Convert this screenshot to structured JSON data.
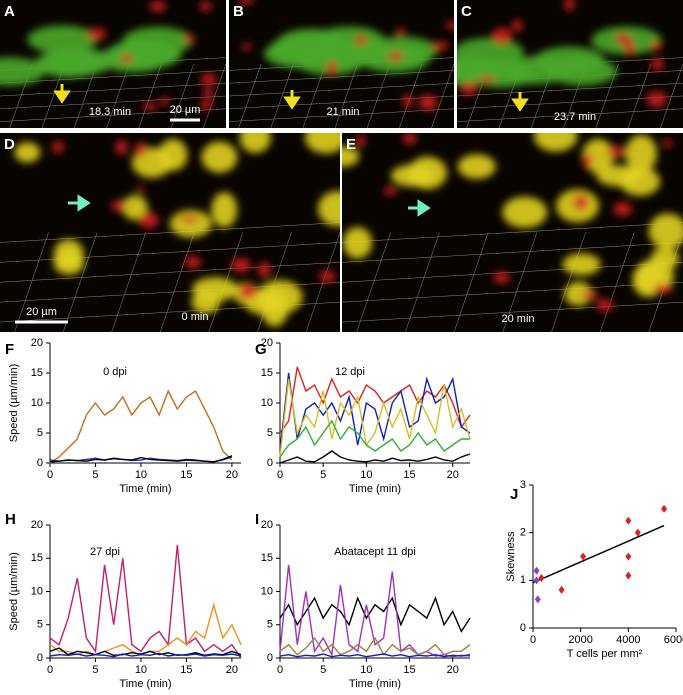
{
  "panels": [
    {
      "label": "A",
      "time": "18.3 min",
      "scale": "20 µm"
    },
    {
      "label": "B",
      "time": "21 min"
    },
    {
      "label": "C",
      "time": "23.7 min"
    },
    {
      "label": "D",
      "time": "0 min",
      "scale": "20 µm"
    },
    {
      "label": "E",
      "time": "20 min"
    }
  ],
  "chart_data": [
    {
      "type": "line",
      "label": "F",
      "title": "0 dpi",
      "ylabel": "Speed (µm/min)",
      "xlabel": "Time (min)",
      "x": [
        0,
        1,
        2,
        3,
        4,
        5,
        6,
        7,
        8,
        9,
        10,
        11,
        12,
        13,
        14,
        15,
        16,
        17,
        18,
        19,
        20
      ],
      "xlim": [
        0,
        21
      ],
      "xticks": [
        0,
        5,
        10,
        15,
        20
      ],
      "ylim": [
        0,
        20
      ],
      "yticks": [
        0,
        5,
        10,
        15,
        20
      ],
      "series": [
        {
          "color": "#c07020",
          "values": [
            0,
            1,
            2.5,
            4,
            8,
            10,
            8,
            9,
            11,
            8,
            10,
            11,
            8,
            12,
            9,
            11,
            12,
            9,
            6,
            2,
            0.5
          ]
        },
        {
          "color": "#2030c0",
          "values": [
            0.5,
            0.3,
            0.5,
            0.4,
            0.6,
            0.8,
            0.5,
            0.7,
            0.6,
            0.4,
            0.5,
            0.8,
            0.6,
            0.5,
            0.4,
            0.6,
            0.5,
            0.3,
            0.2,
            0.5,
            1
          ]
        },
        {
          "color": "#000000",
          "values": [
            0.2,
            0.3,
            0.5,
            0.4,
            0.3,
            0.6,
            0.5,
            0.8,
            0.6,
            0.5,
            0.9,
            0.6,
            0.5,
            0.4,
            0.3,
            0.5,
            0.4,
            0.3,
            0.2,
            0.6,
            1.2
          ]
        }
      ]
    },
    {
      "type": "line",
      "label": "G",
      "title": "12 dpi",
      "xlabel": "Time (min)",
      "x": [
        0,
        1,
        2,
        3,
        4,
        5,
        6,
        7,
        8,
        9,
        10,
        11,
        12,
        13,
        14,
        15,
        16,
        17,
        18,
        19,
        20,
        21,
        22
      ],
      "xlim": [
        0,
        22
      ],
      "xticks": [
        0,
        5,
        10,
        15,
        20
      ],
      "ylim": [
        0,
        20
      ],
      "yticks": [
        0,
        5,
        10,
        15,
        20
      ],
      "series": [
        {
          "color": "#e02020",
          "values": [
            5,
            7,
            16,
            12,
            13,
            10,
            14,
            11,
            12,
            10,
            13,
            12,
            10,
            11,
            12,
            13,
            10,
            12,
            11,
            13,
            10,
            6,
            8
          ]
        },
        {
          "color": "#1020c0",
          "values": [
            2,
            15,
            4,
            9,
            10,
            8,
            10,
            7,
            11,
            3,
            10,
            9,
            4,
            10,
            12,
            6,
            7,
            14,
            10,
            11,
            14,
            6,
            5
          ]
        },
        {
          "color": "#d4c020",
          "values": [
            1,
            14,
            5,
            8,
            6,
            12,
            4,
            10,
            8,
            11,
            3,
            5,
            10,
            6,
            9,
            4,
            11,
            8,
            5,
            13,
            6,
            9,
            4
          ]
        },
        {
          "color": "#30b030",
          "values": [
            1,
            3,
            4,
            6,
            3,
            5,
            7,
            4,
            6,
            5,
            3,
            2,
            3,
            4,
            2,
            3,
            5,
            3,
            4,
            2,
            3,
            4,
            4
          ]
        },
        {
          "color": "#000000",
          "values": [
            0,
            0.5,
            1,
            0.3,
            0.2,
            1,
            2,
            1,
            0.5,
            0.3,
            0.2,
            0.5,
            0.3,
            0.8,
            0.4,
            0.5,
            0.3,
            0.6,
            1,
            0.5,
            0.3,
            1,
            1.5
          ]
        }
      ]
    },
    {
      "type": "line",
      "label": "H",
      "title": "27 dpi",
      "ylabel": "Speed (µm/min)",
      "xlabel": "Time (min)",
      "x": [
        0,
        1,
        2,
        3,
        4,
        5,
        6,
        7,
        8,
        9,
        10,
        11,
        12,
        13,
        14,
        15,
        16,
        17,
        18,
        19,
        20,
        21
      ],
      "xlim": [
        0,
        21
      ],
      "xticks": [
        0,
        5,
        10,
        15,
        20
      ],
      "ylim": [
        0,
        20
      ],
      "yticks": [
        0,
        5,
        10,
        15,
        20
      ],
      "series": [
        {
          "color": "#c02070",
          "values": [
            3,
            2,
            6,
            12,
            3,
            1,
            14,
            5,
            15,
            2,
            1,
            3,
            4,
            2,
            17,
            2,
            3,
            1,
            2,
            1,
            2,
            0
          ]
        },
        {
          "color": "#f09020",
          "values": [
            2,
            1,
            1,
            0.5,
            1,
            0.5,
            1,
            1.5,
            2,
            1,
            0.5,
            1,
            1,
            2,
            3,
            2,
            4,
            3,
            8,
            3,
            5,
            2
          ]
        },
        {
          "color": "#000000",
          "values": [
            1,
            1.5,
            0.5,
            1,
            0.8,
            0.5,
            1,
            0.4,
            0.5,
            0.8,
            0.6,
            1,
            0.5,
            0.8,
            0.4,
            0.5,
            0.8,
            0.4,
            0.6,
            0.5,
            1,
            0.5
          ]
        },
        {
          "color": "#1020c0",
          "values": [
            0.3,
            0.5,
            0.4,
            0.6,
            0.3,
            0.5,
            0.4,
            0.2,
            0.6,
            0.3,
            0.5,
            0.4,
            0.7,
            0.3,
            0.5,
            0.4,
            0.6,
            0.3,
            0.5,
            0.4,
            0.6,
            0.3
          ]
        }
      ]
    },
    {
      "type": "line",
      "label": "I",
      "title": "Abatacept 11 dpi",
      "xlabel": "Time (min)",
      "x": [
        0,
        1,
        2,
        3,
        4,
        5,
        6,
        7,
        8,
        9,
        10,
        11,
        12,
        13,
        14,
        15,
        16,
        17,
        18,
        19,
        20,
        21,
        22
      ],
      "xlim": [
        0,
        22
      ],
      "xticks": [
        0,
        5,
        10,
        15,
        20
      ],
      "ylim": [
        0,
        20
      ],
      "yticks": [
        0,
        5,
        10,
        15,
        20
      ],
      "series": [
        {
          "color": "#000000",
          "values": [
            6,
            8,
            5,
            7,
            9,
            6,
            8,
            7,
            5,
            9,
            6,
            8,
            7,
            9,
            5,
            8,
            7,
            6,
            9,
            5,
            7,
            4,
            6
          ]
        },
        {
          "color": "#a030c0",
          "values": [
            1,
            14,
            2,
            10,
            1,
            3,
            0.5,
            11,
            2,
            1,
            8,
            2,
            3,
            13,
            1,
            2,
            0.5,
            1,
            0.3,
            0.5,
            0.2,
            0.4,
            0.3
          ]
        },
        {
          "color": "#a08040",
          "values": [
            1,
            2,
            0.5,
            1.5,
            3,
            1,
            2,
            0.5,
            1,
            2,
            1,
            3,
            0.5,
            2,
            1,
            1.5,
            0.5,
            1,
            2,
            0.5,
            1,
            1,
            2
          ]
        },
        {
          "color": "#1020c0",
          "values": [
            0.3,
            0.5,
            0.2,
            0.4,
            0.3,
            0.6,
            0.2,
            0.4,
            0.3,
            0.5,
            0.2,
            0.4,
            0.6,
            0.3,
            0.5,
            0.2,
            0.4,
            0.3,
            0.5,
            0.2,
            0.4,
            0.3,
            0.5
          ]
        }
      ]
    },
    {
      "type": "scatter",
      "label": "J",
      "ylabel": "Skewness",
      "xlabel": "T cells per mm²",
      "xlim": [
        0,
        6000
      ],
      "xticks": [
        0,
        2000,
        4000,
        6000
      ],
      "ylim": [
        0,
        3
      ],
      "yticks": [
        0,
        1,
        2,
        3
      ],
      "series": [
        {
          "color": "#e02020",
          "x": [
            350,
            1200,
            2100,
            4000,
            4000,
            4000,
            4400,
            5500
          ],
          "values": [
            1.05,
            0.8,
            1.5,
            2.25,
            1.5,
            1.1,
            2.0,
            2.5
          ]
        },
        {
          "color": "#9040d0",
          "x": [
            150,
            150,
            200
          ],
          "values": [
            1.2,
            1.0,
            0.6
          ]
        }
      ],
      "fit": {
        "x": [
          0,
          5500
        ],
        "y": [
          0.95,
          2.15
        ]
      }
    }
  ]
}
